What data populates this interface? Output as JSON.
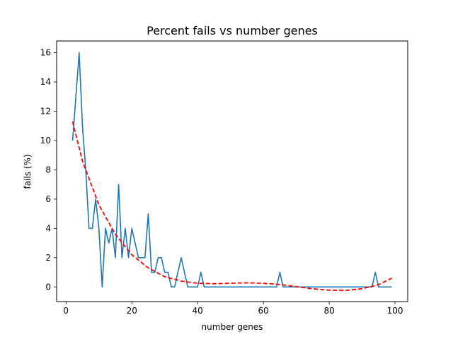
{
  "chart_data": {
    "type": "line",
    "title": "Percent fails vs number genes",
    "xlabel": "number genes",
    "ylabel": "fails (%)",
    "xlim": [
      -2.85,
      103.85
    ],
    "ylim": [
      -1.0,
      16.8
    ],
    "x_ticks": [
      0,
      20,
      40,
      60,
      80,
      100
    ],
    "y_ticks": [
      0,
      2,
      4,
      6,
      8,
      10,
      12,
      14,
      16
    ],
    "grid": false,
    "legend": "none",
    "series": [
      {
        "style": "solid",
        "color": "#1f77b4",
        "x": [
          2,
          3,
          4,
          5,
          6,
          7,
          8,
          9,
          10,
          11,
          12,
          13,
          14,
          15,
          16,
          17,
          18,
          19,
          20,
          21,
          22,
          23,
          24,
          25,
          26,
          27,
          28,
          29,
          30,
          31,
          32,
          33,
          34,
          35,
          36,
          37,
          38,
          39,
          40,
          41,
          42,
          43,
          44,
          45,
          46,
          47,
          48,
          49,
          50,
          51,
          52,
          53,
          54,
          55,
          56,
          57,
          58,
          59,
          60,
          61,
          62,
          63,
          64,
          65,
          66,
          67,
          68,
          69,
          70,
          71,
          72,
          73,
          74,
          75,
          76,
          77,
          78,
          79,
          80,
          81,
          82,
          83,
          84,
          85,
          86,
          87,
          88,
          89,
          90,
          91,
          92,
          93,
          94,
          95,
          96,
          97,
          98,
          99
        ],
        "y": [
          10,
          13,
          16,
          11,
          8,
          4,
          4,
          6,
          4,
          0,
          4,
          3,
          4,
          2,
          7,
          2,
          4,
          2,
          4,
          3,
          2,
          2,
          2,
          5,
          1,
          1,
          2,
          2,
          1,
          1,
          0,
          0,
          1,
          2,
          1,
          0,
          0,
          0,
          0,
          1,
          0,
          0,
          0,
          0,
          0,
          0,
          0,
          0,
          0,
          0,
          0,
          0,
          0,
          0,
          0,
          0,
          0,
          0,
          0,
          0,
          0,
          0,
          0,
          1,
          0,
          0,
          0,
          0,
          0,
          0,
          0,
          0,
          0,
          0,
          0,
          0,
          0,
          0,
          0,
          0,
          0,
          0,
          0,
          0,
          0,
          0,
          0,
          0,
          0,
          0,
          0,
          0,
          1,
          0,
          0,
          0,
          0,
          0
        ]
      },
      {
        "style": "dashed",
        "color": "#ff0000",
        "x": [
          2,
          5,
          10,
          15,
          20,
          25,
          30,
          35,
          40,
          45,
          50,
          55,
          60,
          65,
          70,
          75,
          80,
          85,
          90,
          95,
          99
        ],
        "y": [
          11.3,
          8.6,
          5.6,
          3.6,
          2.2,
          1.3,
          0.7,
          0.4,
          0.25,
          0.22,
          0.25,
          0.28,
          0.25,
          0.17,
          0.02,
          -0.13,
          -0.22,
          -0.24,
          -0.12,
          0.15,
          0.6
        ]
      }
    ]
  }
}
